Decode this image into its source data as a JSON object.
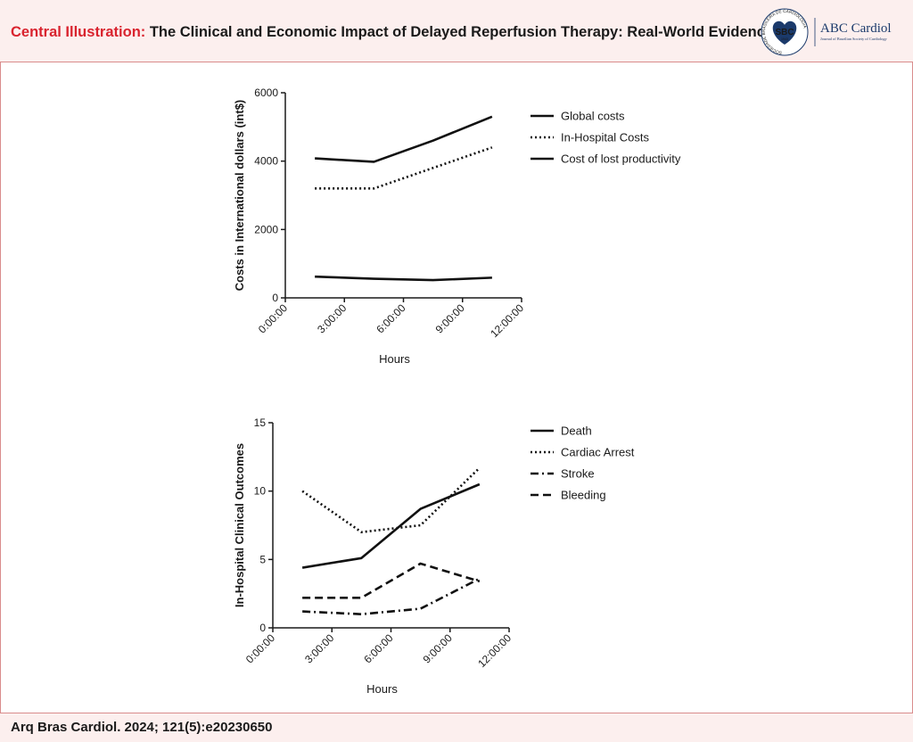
{
  "header": {
    "title_prefix": "Central Illustration:",
    "title_main": " The Clinical and Economic Impact of Delayed Reperfusion Therapy: Real-World Evidence"
  },
  "logo": {
    "badge_text": "SBC",
    "badge_year": "1943",
    "ring_text": "SOCIEDADE BRASILEIRA DE CARDIOLOGIA",
    "journal_name": "ABC Cardiol",
    "journal_sub": "Journal of Brazilian Society of Cardiology"
  },
  "footer": {
    "citation": "Arq Bras Cardiol. 2024; 121(5):e20230650"
  },
  "chart_data": [
    {
      "type": "line",
      "title": "",
      "xlabel": "Hours",
      "ylabel": "Costs in International dollars (int$)",
      "xlim": [
        0,
        12
      ],
      "ylim": [
        0,
        6000
      ],
      "x_ticks": [
        "0:00:00",
        "3:00:00",
        "6:00:00",
        "9:00:00",
        "12:00:00"
      ],
      "y_ticks": [
        "0",
        "2000",
        "4000",
        "6000"
      ],
      "legend_position": "right",
      "series": [
        {
          "name": "Global costs",
          "style": "solid",
          "x": [
            1.5,
            4.5,
            7.5,
            10.5
          ],
          "values": [
            4080,
            3980,
            4600,
            5300
          ]
        },
        {
          "name": "In-Hospital Costs",
          "style": "dotted",
          "x": [
            1.5,
            4.5,
            7.5,
            10.5
          ],
          "values": [
            3200,
            3200,
            3800,
            4400
          ]
        },
        {
          "name": "Cost of lost productivity",
          "style": "solid",
          "x": [
            1.5,
            4.5,
            7.5,
            10.5
          ],
          "values": [
            620,
            560,
            520,
            590
          ]
        }
      ]
    },
    {
      "type": "line",
      "title": "",
      "xlabel": "Hours",
      "ylabel": "In-Hospital Clinical Outcomes",
      "xlim": [
        0,
        12
      ],
      "ylim": [
        0,
        15
      ],
      "x_ticks": [
        "0:00:00",
        "3:00:00",
        "6:00:00",
        "9:00:00",
        "12:00:00"
      ],
      "y_ticks": [
        "0",
        "5",
        "10",
        "15"
      ],
      "legend_position": "right",
      "series": [
        {
          "name": "Death",
          "style": "solid",
          "x": [
            1.5,
            4.5,
            7.5,
            10.5
          ],
          "values": [
            4.4,
            5.1,
            8.7,
            10.5
          ]
        },
        {
          "name": "Cardiac Arrest",
          "style": "dotted",
          "x": [
            1.5,
            4.5,
            7.5,
            10.5
          ],
          "values": [
            10.0,
            7.0,
            7.5,
            11.7
          ]
        },
        {
          "name": "Stroke",
          "style": "dashdot",
          "x": [
            1.5,
            4.5,
            7.5,
            10.5
          ],
          "values": [
            1.2,
            1.0,
            1.4,
            3.6
          ]
        },
        {
          "name": "Bleeding",
          "style": "dashed",
          "x": [
            1.5,
            4.5,
            7.5,
            10.5
          ],
          "values": [
            2.2,
            2.2,
            4.7,
            3.4
          ]
        }
      ]
    }
  ]
}
